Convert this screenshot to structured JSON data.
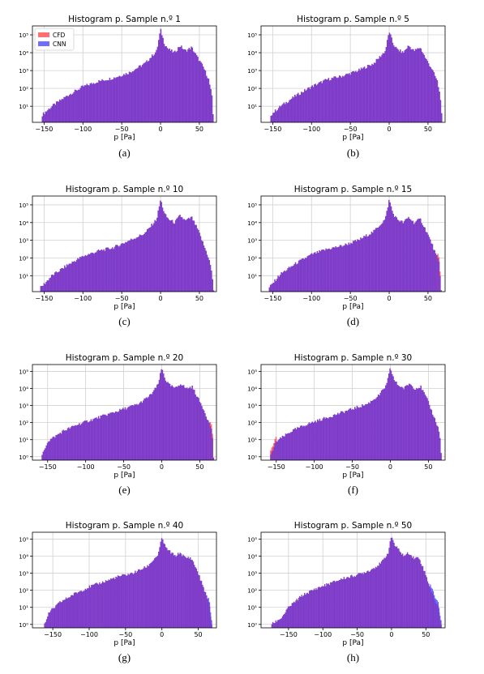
{
  "legend": {
    "entries": [
      {
        "name": "CFD",
        "color": "#ff6f6f"
      },
      {
        "name": "CNN",
        "color": "#6f6fff"
      }
    ],
    "placement": "top-left",
    "shown_in_panel": 0
  },
  "colors": {
    "overlap": "#7e3cc9",
    "cfd_edge": "#ff5c5c",
    "cnn_edge": "#5b63ff",
    "grid": "#d0d0d0"
  },
  "chart_data": [
    {
      "type": "histogram",
      "title": "Histogram p. Sample n.º 1",
      "xlabel": "p [Pa]",
      "ylabel": "",
      "yscale": "log",
      "caption": "(a)",
      "xticks": [
        "−150",
        "−100",
        "−50",
        "0",
        "50"
      ],
      "xtick_values": [
        -150,
        -100,
        -50,
        0,
        50
      ],
      "yticks": [
        "10¹",
        "10²",
        "10³",
        "10⁴",
        "10⁵"
      ],
      "ytick_values": [
        1,
        2,
        3,
        4,
        5
      ],
      "xlim": [
        -165,
        72
      ],
      "ylim_log10": [
        0.1,
        5.5
      ],
      "grid": true,
      "x_range": [
        -153,
        68
      ],
      "profile_log10": [
        [
          -153,
          0.5
        ],
        [
          -140,
          1.0
        ],
        [
          -120,
          1.6
        ],
        [
          -100,
          2.1
        ],
        [
          -80,
          2.4
        ],
        [
          -60,
          2.6
        ],
        [
          -40,
          2.9
        ],
        [
          -20,
          3.4
        ],
        [
          -5,
          4.1
        ],
        [
          0,
          5.3
        ],
        [
          5,
          4.5
        ],
        [
          10,
          4.2
        ],
        [
          18,
          4.0
        ],
        [
          25,
          4.4
        ],
        [
          32,
          4.1
        ],
        [
          40,
          4.3
        ],
        [
          48,
          3.7
        ],
        [
          55,
          3.2
        ],
        [
          62,
          2.5
        ],
        [
          66,
          1.6
        ],
        [
          68,
          0.2
        ]
      ],
      "series": [
        {
          "name": "CFD"
        },
        {
          "name": "CNN"
        }
      ],
      "mismatch": null
    },
    {
      "type": "histogram",
      "title": "Histogram p. Sample n.º 5",
      "xlabel": "p [Pa]",
      "ylabel": "",
      "yscale": "log",
      "caption": "(b)",
      "xticks": [
        "−150",
        "−100",
        "−50",
        "0",
        "50"
      ],
      "xtick_values": [
        -150,
        -100,
        -50,
        0,
        50
      ],
      "yticks": [
        "10¹",
        "10²",
        "10³",
        "10⁴",
        "10⁵"
      ],
      "ytick_values": [
        1,
        2,
        3,
        4,
        5
      ],
      "xlim": [
        -165,
        72
      ],
      "ylim_log10": [
        0.1,
        5.5
      ],
      "grid": true,
      "x_range": [
        -153,
        68
      ],
      "profile_log10": [
        [
          -153,
          0.5
        ],
        [
          -140,
          1.0
        ],
        [
          -120,
          1.6
        ],
        [
          -100,
          2.1
        ],
        [
          -80,
          2.5
        ],
        [
          -60,
          2.7
        ],
        [
          -40,
          3.0
        ],
        [
          -20,
          3.4
        ],
        [
          -5,
          4.1
        ],
        [
          0,
          5.2
        ],
        [
          5,
          4.5
        ],
        [
          10,
          4.2
        ],
        [
          18,
          4.0
        ],
        [
          25,
          4.4
        ],
        [
          32,
          4.1
        ],
        [
          40,
          4.3
        ],
        [
          48,
          3.6
        ],
        [
          55,
          3.1
        ],
        [
          62,
          2.4
        ],
        [
          66,
          1.5
        ],
        [
          68,
          0.2
        ]
      ],
      "series": [
        {
          "name": "CFD"
        },
        {
          "name": "CNN"
        }
      ],
      "mismatch": null
    },
    {
      "type": "histogram",
      "title": "Histogram p. Sample n.º 10",
      "xlabel": "p [Pa]",
      "ylabel": "",
      "yscale": "log",
      "caption": "(c)",
      "xticks": [
        "−150",
        "−100",
        "−50",
        "0",
        "50"
      ],
      "xtick_values": [
        -150,
        -100,
        -50,
        0,
        50
      ],
      "yticks": [
        "10¹",
        "10²",
        "10³",
        "10⁴",
        "10⁵"
      ],
      "ytick_values": [
        1,
        2,
        3,
        4,
        5
      ],
      "xlim": [
        -165,
        72
      ],
      "ylim_log10": [
        0.1,
        5.5
      ],
      "grid": true,
      "x_range": [
        -155,
        68
      ],
      "profile_log10": [
        [
          -155,
          0.3
        ],
        [
          -140,
          1.0
        ],
        [
          -120,
          1.6
        ],
        [
          -100,
          2.1
        ],
        [
          -80,
          2.4
        ],
        [
          -60,
          2.6
        ],
        [
          -40,
          3.0
        ],
        [
          -20,
          3.4
        ],
        [
          -5,
          4.2
        ],
        [
          0,
          5.3
        ],
        [
          5,
          4.5
        ],
        [
          10,
          4.2
        ],
        [
          18,
          4.0
        ],
        [
          25,
          4.4
        ],
        [
          32,
          4.1
        ],
        [
          40,
          4.3
        ],
        [
          48,
          3.6
        ],
        [
          55,
          2.8
        ],
        [
          62,
          2.0
        ],
        [
          66,
          1.2
        ],
        [
          68,
          0.2
        ]
      ],
      "series": [
        {
          "name": "CFD"
        },
        {
          "name": "CNN"
        }
      ],
      "mismatch": null
    },
    {
      "type": "histogram",
      "title": "Histogram p. Sample n.º 15",
      "xlabel": "p [Pa]",
      "ylabel": "",
      "yscale": "log",
      "caption": "(d)",
      "xticks": [
        "−150",
        "−100",
        "−50",
        "0",
        "50"
      ],
      "xtick_values": [
        -150,
        -100,
        -50,
        0,
        50
      ],
      "yticks": [
        "10¹",
        "10²",
        "10³",
        "10⁴",
        "10⁵"
      ],
      "ytick_values": [
        1,
        2,
        3,
        4,
        5
      ],
      "xlim": [
        -165,
        72
      ],
      "ylim_log10": [
        0.1,
        5.5
      ],
      "grid": true,
      "x_range": [
        -155,
        67
      ],
      "profile_log10": [
        [
          -155,
          0.3
        ],
        [
          -140,
          1.1
        ],
        [
          -120,
          1.7
        ],
        [
          -100,
          2.2
        ],
        [
          -80,
          2.5
        ],
        [
          -60,
          2.7
        ],
        [
          -40,
          3.0
        ],
        [
          -20,
          3.5
        ],
        [
          -5,
          4.2
        ],
        [
          0,
          5.3
        ],
        [
          5,
          4.5
        ],
        [
          10,
          4.2
        ],
        [
          18,
          4.0
        ],
        [
          25,
          4.3
        ],
        [
          32,
          4.0
        ],
        [
          40,
          4.2
        ],
        [
          48,
          3.5
        ],
        [
          55,
          2.8
        ],
        [
          60,
          2.2
        ],
        [
          64,
          1.8
        ],
        [
          67,
          0.2
        ]
      ],
      "series": [
        {
          "name": "CFD"
        },
        {
          "name": "CNN"
        }
      ],
      "mismatch": {
        "color": "cfd",
        "x": [
          62,
          66
        ],
        "level_log10": 1.6
      }
    },
    {
      "type": "histogram",
      "title": "Histogram p. Sample n.º 20",
      "xlabel": "p [Pa]",
      "ylabel": "",
      "yscale": "log",
      "caption": "(e)",
      "xticks": [
        "−150",
        "−100",
        "−50",
        "0",
        "50"
      ],
      "xtick_values": [
        -150,
        -100,
        -50,
        0,
        50
      ],
      "yticks": [
        "10⁰",
        "10¹",
        "10²",
        "10³",
        "10⁴",
        "10⁵"
      ],
      "ytick_values": [
        0,
        1,
        2,
        3,
        4,
        5
      ],
      "xlim": [
        -170,
        72
      ],
      "ylim_log10": [
        -0.2,
        5.4
      ],
      "grid": true,
      "x_range": [
        -158,
        68
      ],
      "profile_log10": [
        [
          -158,
          0.0
        ],
        [
          -150,
          0.9
        ],
        [
          -130,
          1.5
        ],
        [
          -110,
          1.9
        ],
        [
          -90,
          2.2
        ],
        [
          -70,
          2.5
        ],
        [
          -50,
          2.8
        ],
        [
          -30,
          3.1
        ],
        [
          -15,
          3.6
        ],
        [
          -5,
          4.2
        ],
        [
          0,
          5.2
        ],
        [
          5,
          4.5
        ],
        [
          10,
          4.2
        ],
        [
          18,
          4.0
        ],
        [
          25,
          4.3
        ],
        [
          32,
          4.0
        ],
        [
          40,
          4.1
        ],
        [
          48,
          3.4
        ],
        [
          55,
          2.8
        ],
        [
          62,
          2.0
        ],
        [
          66,
          1.6
        ],
        [
          68,
          0.0
        ]
      ],
      "series": [
        {
          "name": "CFD"
        },
        {
          "name": "CNN"
        }
      ],
      "mismatch": {
        "color": "cfd",
        "x": [
          63,
          67
        ],
        "level_log10": 1.4
      }
    },
    {
      "type": "histogram",
      "title": "Histogram p. Sample n.º 30",
      "xlabel": "p [Pa]",
      "ylabel": "",
      "yscale": "log",
      "caption": "(f)",
      "xticks": [
        "−150",
        "−100",
        "−50",
        "0",
        "50"
      ],
      "xtick_values": [
        -150,
        -100,
        -50,
        0,
        50
      ],
      "yticks": [
        "10⁰",
        "10¹",
        "10²",
        "10³",
        "10⁴",
        "10⁵"
      ],
      "ytick_values": [
        0,
        1,
        2,
        3,
        4,
        5
      ],
      "xlim": [
        -170,
        72
      ],
      "ylim_log10": [
        -0.2,
        5.4
      ],
      "grid": true,
      "x_range": [
        -158,
        67
      ],
      "profile_log10": [
        [
          -158,
          0.0
        ],
        [
          -150,
          0.9
        ],
        [
          -130,
          1.5
        ],
        [
          -110,
          1.9
        ],
        [
          -90,
          2.2
        ],
        [
          -70,
          2.5
        ],
        [
          -50,
          2.8
        ],
        [
          -30,
          3.1
        ],
        [
          -15,
          3.6
        ],
        [
          -5,
          4.2
        ],
        [
          0,
          5.2
        ],
        [
          5,
          4.5
        ],
        [
          10,
          4.2
        ],
        [
          18,
          4.0
        ],
        [
          25,
          4.3
        ],
        [
          32,
          4.0
        ],
        [
          40,
          4.1
        ],
        [
          48,
          3.4
        ],
        [
          55,
          2.6
        ],
        [
          62,
          1.8
        ],
        [
          65,
          1.3
        ],
        [
          67,
          0.0
        ]
      ],
      "series": [
        {
          "name": "CFD"
        },
        {
          "name": "CNN"
        }
      ],
      "mismatch": {
        "color": "cfd",
        "x": [
          -158,
          -150
        ],
        "level_log10": 1.2
      }
    },
    {
      "type": "histogram",
      "title": "Histogram p. Sample n.º 40",
      "xlabel": "p [Pa]",
      "ylabel": "",
      "yscale": "log",
      "caption": "(g)",
      "xticks": [
        "−150",
        "−100",
        "−50",
        "0",
        "50"
      ],
      "xtick_values": [
        -150,
        -100,
        -50,
        0,
        50
      ],
      "yticks": [
        "10⁰",
        "10¹",
        "10²",
        "10³",
        "10⁴",
        "10⁵"
      ],
      "ytick_values": [
        0,
        1,
        2,
        3,
        4,
        5
      ],
      "xlim": [
        -178,
        75
      ],
      "ylim_log10": [
        -0.2,
        5.4
      ],
      "grid": true,
      "x_range": [
        -162,
        68
      ],
      "profile_log10": [
        [
          -162,
          0.0
        ],
        [
          -155,
          0.7
        ],
        [
          -140,
          1.3
        ],
        [
          -120,
          1.8
        ],
        [
          -100,
          2.2
        ],
        [
          -80,
          2.5
        ],
        [
          -60,
          2.8
        ],
        [
          -40,
          3.0
        ],
        [
          -20,
          3.4
        ],
        [
          -5,
          4.1
        ],
        [
          0,
          5.1
        ],
        [
          5,
          4.5
        ],
        [
          10,
          4.3
        ],
        [
          18,
          4.0
        ],
        [
          25,
          4.2
        ],
        [
          32,
          3.9
        ],
        [
          40,
          3.9
        ],
        [
          48,
          3.2
        ],
        [
          55,
          2.4
        ],
        [
          62,
          1.6
        ],
        [
          66,
          0.9
        ],
        [
          68,
          0.0
        ]
      ],
      "series": [
        {
          "name": "CFD"
        },
        {
          "name": "CNN"
        }
      ],
      "mismatch": {
        "color": "cnn",
        "x": [
          63,
          68
        ],
        "level_log10": 1.5
      }
    },
    {
      "type": "histogram",
      "title": "Histogram p. Sample n.º 50",
      "xlabel": "p [Pa]",
      "ylabel": "",
      "yscale": "log",
      "caption": "(h)",
      "xticks": [
        "−150",
        "−100",
        "−50",
        "0",
        "50"
      ],
      "xtick_values": [
        -150,
        -100,
        -50,
        0,
        50
      ],
      "yticks": [
        "10⁰",
        "10¹",
        "10²",
        "10³",
        "10⁴",
        "10⁵"
      ],
      "ytick_values": [
        0,
        1,
        2,
        3,
        4,
        5
      ],
      "xlim": [
        -190,
        78
      ],
      "ylim_log10": [
        -0.2,
        5.4
      ],
      "grid": true,
      "x_range": [
        -175,
        72
      ],
      "profile_log10": [
        [
          -175,
          0.0
        ],
        [
          -160,
          0.4
        ],
        [
          -150,
          1.0
        ],
        [
          -130,
          1.7
        ],
        [
          -110,
          2.1
        ],
        [
          -90,
          2.4
        ],
        [
          -70,
          2.7
        ],
        [
          -50,
          2.9
        ],
        [
          -30,
          3.2
        ],
        [
          -15,
          3.6
        ],
        [
          -5,
          4.2
        ],
        [
          0,
          5.2
        ],
        [
          5,
          4.6
        ],
        [
          10,
          4.4
        ],
        [
          18,
          4.0
        ],
        [
          25,
          4.2
        ],
        [
          32,
          3.9
        ],
        [
          40,
          3.9
        ],
        [
          48,
          3.1
        ],
        [
          55,
          2.3
        ],
        [
          62,
          1.5
        ],
        [
          68,
          1.0
        ],
        [
          72,
          0.0
        ]
      ],
      "series": [
        {
          "name": "CFD"
        },
        {
          "name": "CNN"
        }
      ],
      "mismatch": {
        "color": "cnn",
        "x": [
          55,
          72
        ],
        "level_log10": 2.0
      }
    }
  ]
}
